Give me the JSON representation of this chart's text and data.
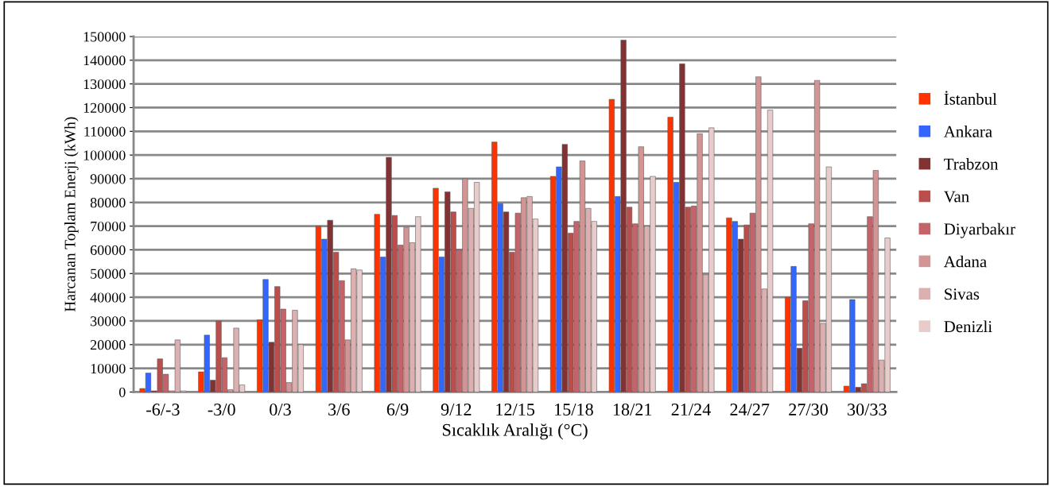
{
  "chart_data": {
    "type": "bar",
    "xlabel": "Sıcaklık Aralığı (°C)",
    "ylabel": "Harcanan Toplam Enerji (kWh)",
    "categories": [
      "-6/-3",
      "-3/0",
      "0/3",
      "3/6",
      "6/9",
      "9/12",
      "12/15",
      "15/18",
      "18/21",
      "21/24",
      "24/27",
      "27/30",
      "30/33"
    ],
    "series": [
      {
        "name": "İstanbul",
        "color": "#ff3300",
        "values": [
          1500,
          8500,
          30500,
          70000,
          75000,
          86000,
          105500,
          91000,
          123500,
          116000,
          73500,
          40000,
          2500
        ]
      },
      {
        "name": "Ankara",
        "color": "#3366ff",
        "values": [
          8000,
          24000,
          47500,
          64500,
          57000,
          57000,
          79500,
          95000,
          82500,
          88500,
          72000,
          53000,
          39000
        ]
      },
      {
        "name": "Trabzon",
        "color": "#833234",
        "values": [
          500,
          5000,
          21000,
          72500,
          99000,
          84500,
          76000,
          104500,
          148500,
          138500,
          64500,
          18500,
          2000
        ]
      },
      {
        "name": "Van",
        "color": "#b94e4c",
        "values": [
          14000,
          30000,
          44500,
          59000,
          74500,
          76000,
          59000,
          67000,
          78000,
          78000,
          70500,
          38500,
          3500
        ]
      },
      {
        "name": "Diyarbakır",
        "color": "#c4646a",
        "values": [
          7500,
          14500,
          35000,
          47000,
          62000,
          60000,
          75500,
          72000,
          71000,
          78500,
          75500,
          71000,
          74000
        ]
      },
      {
        "name": "Adana",
        "color": "#d39494",
        "values": [
          500,
          1000,
          4000,
          22000,
          69500,
          90000,
          82000,
          97500,
          103500,
          109000,
          133000,
          131500,
          93500
        ]
      },
      {
        "name": "Sivas",
        "color": "#dcb0b0",
        "values": [
          22000,
          27000,
          34500,
          52000,
          63000,
          77500,
          82500,
          77500,
          70000,
          49500,
          43500,
          29000,
          13500
        ]
      },
      {
        "name": "Denizli",
        "color": "#e8cccc",
        "values": [
          500,
          3000,
          20000,
          51500,
          74000,
          88500,
          73000,
          72000,
          91000,
          111500,
          119000,
          95000,
          65000
        ]
      }
    ],
    "ylim": [
      0,
      150000
    ],
    "yticks": [
      0,
      10000,
      20000,
      30000,
      40000,
      50000,
      60000,
      70000,
      80000,
      90000,
      100000,
      110000,
      120000,
      130000,
      140000,
      150000
    ],
    "grid": "y",
    "legend": "right"
  }
}
